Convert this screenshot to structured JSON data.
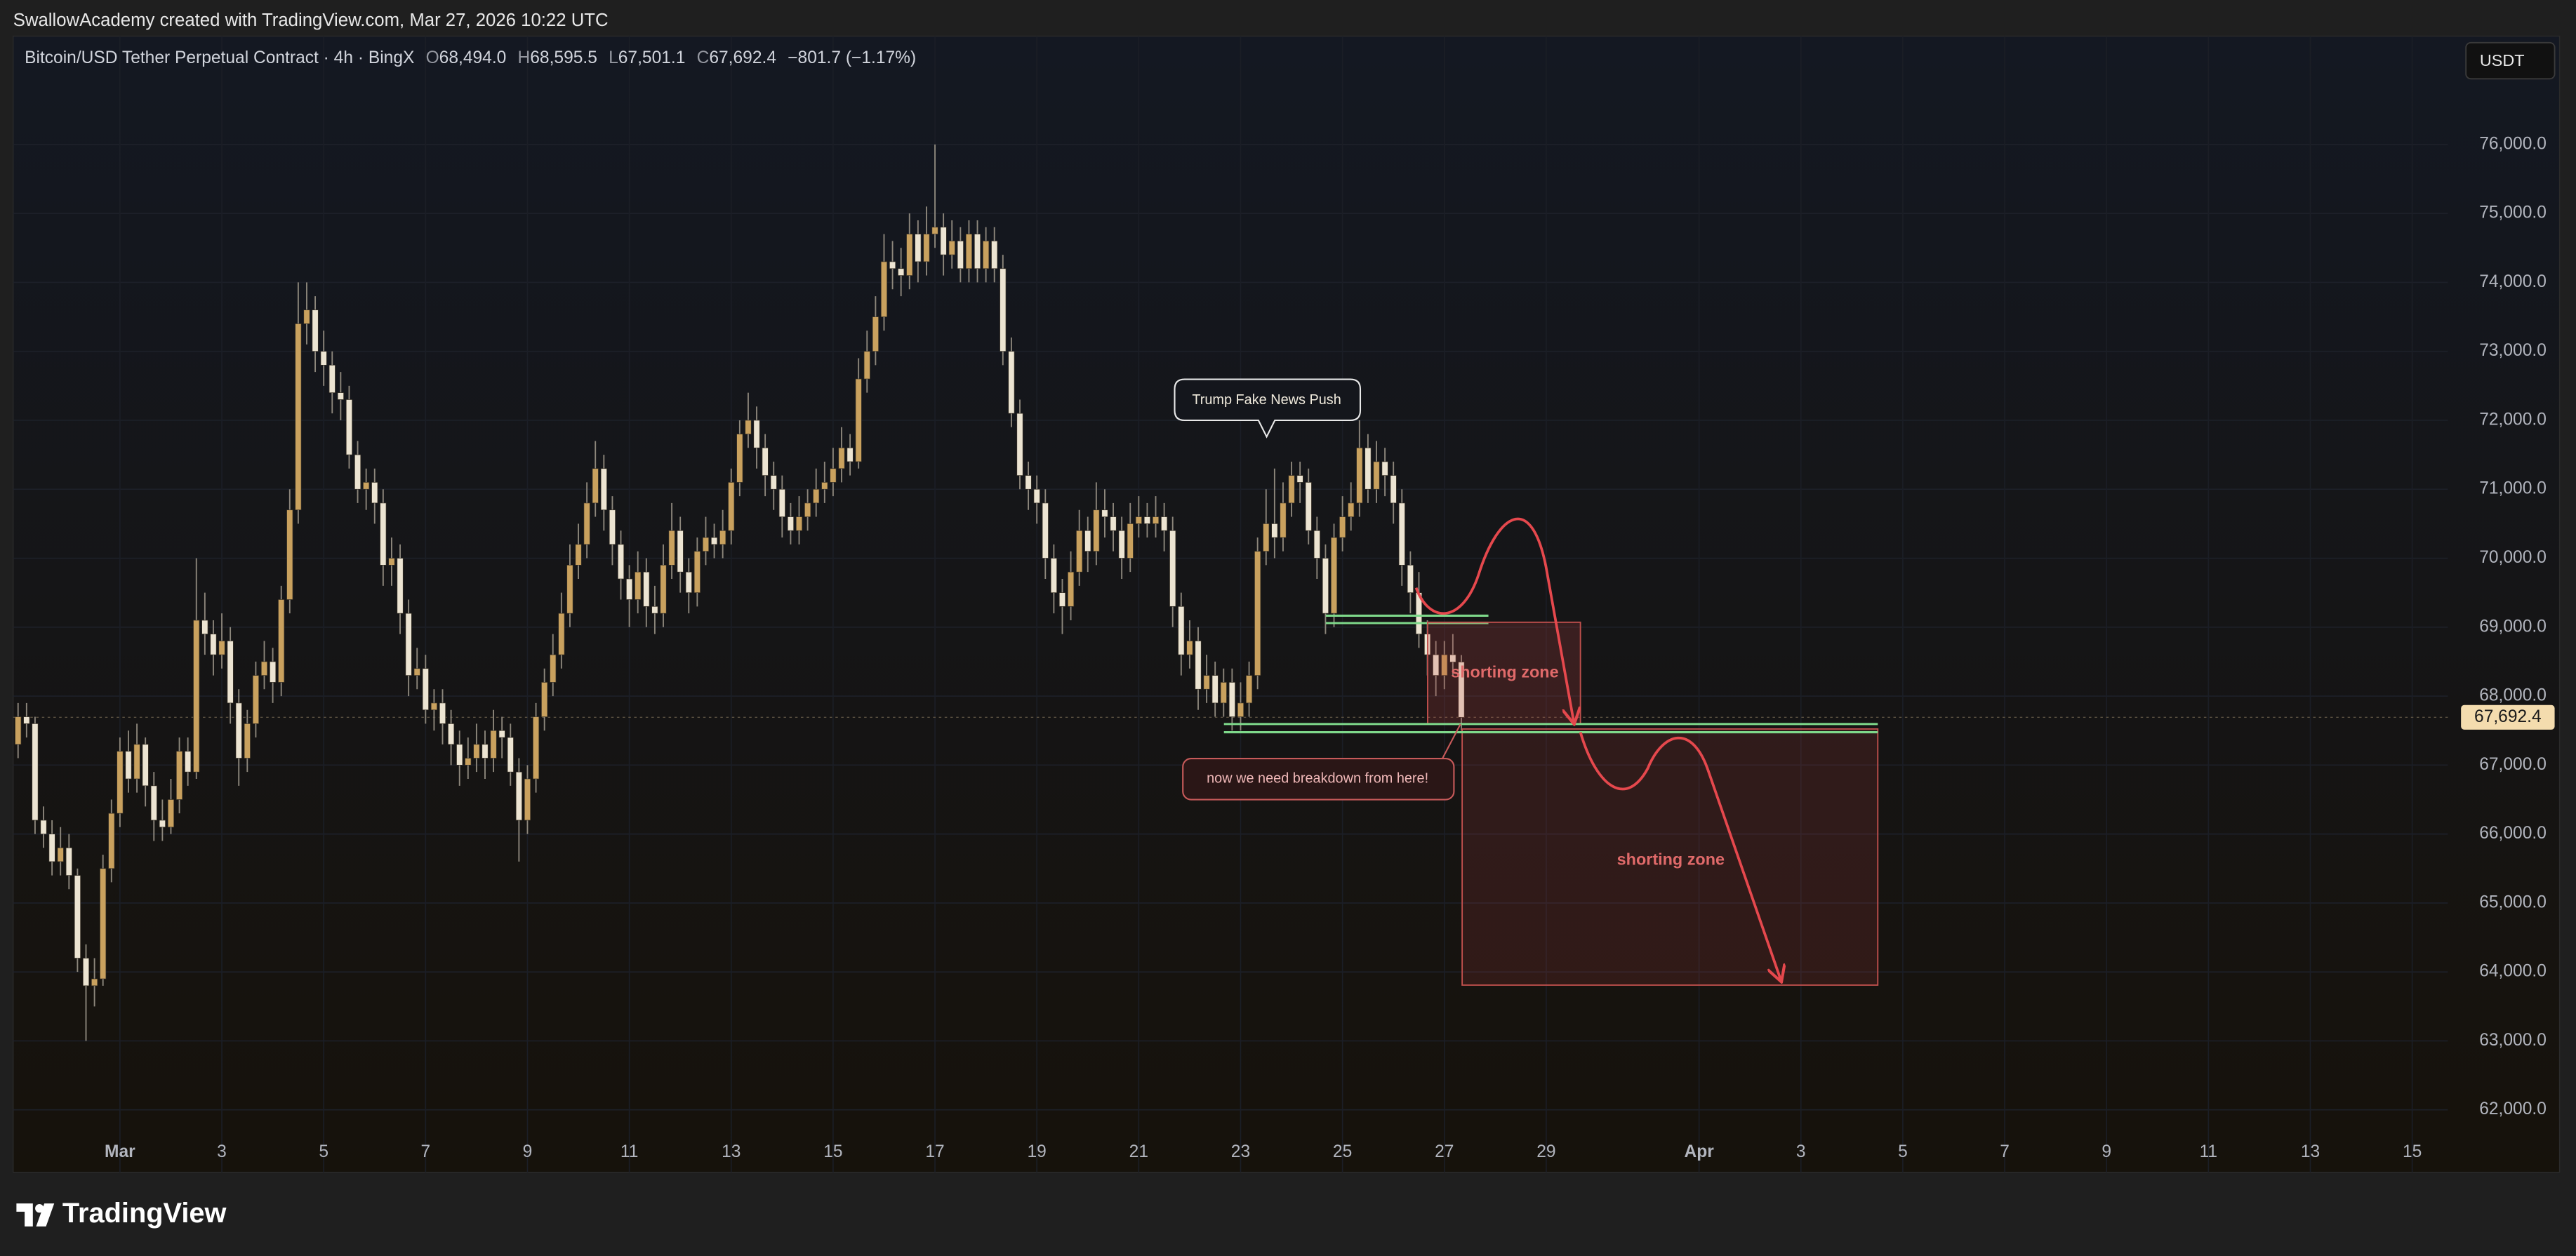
{
  "credit": "SwallowAcademy created with TradingView.com, Mar 27, 2026 10:22 UTC",
  "currency_button": "USDT",
  "brand": "TradingView",
  "chart_data": {
    "type": "candlestick",
    "title": "Bitcoin/USD Tether Perpetual Contract · 4h · BingX",
    "ohlc_labels": [
      {
        "key": "O",
        "label": "68,494.0"
      },
      {
        "key": "H",
        "label": "68,595.5"
      },
      {
        "key": "L",
        "label": "67,501.1"
      },
      {
        "key": "C",
        "label": "67,692.4"
      }
    ],
    "change_label": "−801.7 (−1.17%)",
    "last_price_label": "67,692.4",
    "up_color": "#c9a15e",
    "down_color": "#ece4d2",
    "grid": true,
    "xlim": [
      -0.58,
      286.2
    ],
    "ylim": [
      61095,
      77571
    ],
    "xticks": [
      {
        "value": 12,
        "label": "Mar"
      },
      {
        "value": 24,
        "label": "3"
      },
      {
        "value": 36,
        "label": "5"
      },
      {
        "value": 48,
        "label": "7"
      },
      {
        "value": 60,
        "label": "9"
      },
      {
        "value": 72,
        "label": "11"
      },
      {
        "value": 84,
        "label": "13"
      },
      {
        "value": 96,
        "label": "15"
      },
      {
        "value": 108,
        "label": "17"
      },
      {
        "value": 120,
        "label": "19"
      },
      {
        "value": 132,
        "label": "21"
      },
      {
        "value": 144,
        "label": "23"
      },
      {
        "value": 156,
        "label": "25"
      },
      {
        "value": 168,
        "label": "27"
      },
      {
        "value": 180,
        "label": "29"
      },
      {
        "value": 198,
        "label": "Apr"
      },
      {
        "value": 210,
        "label": "3"
      },
      {
        "value": 222,
        "label": "5"
      },
      {
        "value": 234,
        "label": "7"
      },
      {
        "value": 246,
        "label": "9"
      },
      {
        "value": 258,
        "label": "11"
      },
      {
        "value": 270,
        "label": "13"
      },
      {
        "value": 282,
        "label": "15"
      }
    ],
    "yticks": [
      {
        "value": 62000,
        "label": "62,000.0"
      },
      {
        "value": 63000,
        "label": "63,000.0"
      },
      {
        "value": 64000,
        "label": "64,000.0"
      },
      {
        "value": 65000,
        "label": "65,000.0"
      },
      {
        "value": 66000,
        "label": "66,000.0"
      },
      {
        "value": 67000,
        "label": "67,000.0"
      },
      {
        "value": 68000,
        "label": "68,000.0"
      },
      {
        "value": 69000,
        "label": "69,000.0"
      },
      {
        "value": 70000,
        "label": "70,000.0"
      },
      {
        "value": 71000,
        "label": "71,000.0"
      },
      {
        "value": 72000,
        "label": "72,000.0"
      },
      {
        "value": 73000,
        "label": "73,000.0"
      },
      {
        "value": 74000,
        "label": "74,000.0"
      },
      {
        "value": 75000,
        "label": "75,000.0"
      },
      {
        "value": 76000,
        "label": "76,000.0"
      }
    ],
    "open": [
      67300,
      67700,
      67600,
      66200,
      66000,
      65600,
      65800,
      65400,
      64200,
      63800,
      63900,
      65500,
      66300,
      67200,
      66800,
      67300,
      66700,
      66200,
      66100,
      66500,
      67200,
      66900,
      69100,
      68900,
      68600,
      68800,
      67900,
      67100,
      67600,
      68300,
      68500,
      68200,
      69400,
      70700,
      73400,
      73600,
      73000,
      72800,
      72400,
      72300,
      71500,
      71000,
      71100,
      70800,
      69900,
      70000,
      69200,
      68300,
      68400,
      67800,
      67900,
      67600,
      67300,
      67000,
      67100,
      67300,
      67100,
      67500,
      67400,
      66900,
      66200,
      66800,
      67700,
      68200,
      68600,
      69200,
      69900,
      70200,
      70800,
      71300,
      70700,
      70200,
      69700,
      69400,
      69800,
      69300,
      69200,
      69900,
      70400,
      69800,
      69500,
      70100,
      70300,
      70200,
      70400,
      71100,
      71800,
      72000,
      71600,
      71200,
      71000,
      70600,
      70400,
      70600,
      70800,
      71000,
      71100,
      71300,
      71600,
      71400,
      72600,
      73000,
      73500,
      74300,
      74200,
      74100,
      74700,
      74300,
      74700,
      74800,
      74400,
      74600,
      74200,
      74700,
      74200,
      74600,
      74200,
      73000,
      72100,
      71200,
      71000,
      70800,
      70000,
      69500,
      69300,
      69800,
      70400,
      70100,
      70700,
      70600,
      70400,
      70000,
      70500,
      70600,
      70500,
      70600,
      70400,
      69300,
      68600,
      68800,
      68100,
      68300,
      67900,
      68200,
      67700,
      67900,
      68300,
      70100,
      70500,
      70300,
      70800,
      71200,
      71100,
      70400,
      70000,
      69200,
      70300,
      70600,
      70800,
      71600,
      71000,
      71400,
      71200,
      70800,
      69900,
      69500,
      68900,
      68600,
      68300,
      68600,
      68494
    ],
    "high": [
      67900,
      67900,
      67700,
      66400,
      66200,
      66100,
      66000,
      65500,
      64400,
      64200,
      65700,
      66500,
      67400,
      67500,
      67600,
      67400,
      66900,
      66500,
      66800,
      67400,
      67400,
      70000,
      69500,
      69100,
      69200,
      69000,
      68100,
      67800,
      68500,
      68800,
      68700,
      69600,
      71000,
      74000,
      74000,
      73800,
      73300,
      73000,
      72700,
      72500,
      71700,
      71300,
      71300,
      71000,
      70300,
      70200,
      69400,
      68700,
      68600,
      68100,
      68100,
      67800,
      67500,
      67400,
      67600,
      67500,
      67800,
      67700,
      67600,
      67100,
      67000,
      67900,
      68400,
      68900,
      69500,
      70200,
      70500,
      71100,
      71700,
      71500,
      70900,
      70400,
      69900,
      70100,
      70000,
      69600,
      70200,
      70800,
      70600,
      70000,
      70300,
      70600,
      70500,
      70700,
      71300,
      72000,
      72400,
      72200,
      71800,
      71400,
      71200,
      70800,
      70900,
      71000,
      71300,
      71400,
      71600,
      71900,
      71800,
      72900,
      73300,
      73800,
      74700,
      74600,
      74500,
      75000,
      74900,
      75100,
      76000,
      75000,
      74900,
      74800,
      74900,
      74900,
      74800,
      74800,
      74400,
      73200,
      72300,
      71400,
      71200,
      71000,
      70200,
      69700,
      70100,
      70700,
      70600,
      71100,
      71000,
      70800,
      70600,
      70800,
      70900,
      70800,
      70900,
      70800,
      70600,
      69500,
      69100,
      69000,
      68600,
      68500,
      68400,
      68400,
      68200,
      68500,
      70300,
      71000,
      71300,
      71100,
      71400,
      71400,
      71300,
      70600,
      70200,
      70500,
      70900,
      71100,
      72000,
      71800,
      71700,
      71600,
      71400,
      71000,
      70100,
      69800,
      69100,
      68800,
      68800,
      68900,
      68595.5
    ],
    "low": [
      67100,
      67400,
      66000,
      65800,
      65400,
      65400,
      65200,
      64000,
      63000,
      63500,
      63800,
      65300,
      66100,
      66600,
      66600,
      66400,
      65900,
      65900,
      66000,
      66300,
      66700,
      66800,
      68600,
      68300,
      68400,
      67600,
      66700,
      66900,
      67400,
      68100,
      67900,
      68000,
      69200,
      70500,
      73100,
      72700,
      72500,
      72100,
      72000,
      71300,
      70800,
      70700,
      70500,
      69600,
      69600,
      68900,
      68000,
      68100,
      67600,
      67500,
      67300,
      67000,
      66700,
      66800,
      66900,
      66800,
      66900,
      67100,
      66700,
      65600,
      66000,
      66600,
      67500,
      68000,
      68400,
      69000,
      69700,
      70000,
      70600,
      70400,
      69900,
      69400,
      69000,
      69200,
      69000,
      68900,
      69000,
      69700,
      69500,
      69200,
      69300,
      69900,
      70000,
      70000,
      70200,
      70900,
      71600,
      71300,
      70900,
      70700,
      70300,
      70200,
      70200,
      70400,
      70600,
      70800,
      70900,
      71100,
      71200,
      71300,
      72400,
      72800,
      73300,
      73900,
      73800,
      73900,
      74000,
      74100,
      74500,
      74100,
      74200,
      74000,
      74000,
      74000,
      74000,
      74000,
      72800,
      71900,
      71000,
      70700,
      70500,
      69700,
      69200,
      68900,
      69100,
      69600,
      69800,
      69900,
      70300,
      70100,
      69700,
      69800,
      70300,
      70300,
      70300,
      70100,
      69000,
      68300,
      68400,
      67800,
      67900,
      67700,
      67700,
      67500,
      67500,
      67700,
      68100,
      69900,
      70000,
      70100,
      70600,
      70800,
      70200,
      69700,
      68900,
      69000,
      70100,
      70400,
      70600,
      70800,
      70800,
      70900,
      70500,
      69600,
      69200,
      68700,
      68300,
      68000,
      68100,
      68300,
      67501.1
    ],
    "close": [
      67700,
      67600,
      66200,
      66000,
      65600,
      65800,
      65400,
      64200,
      63800,
      63900,
      65500,
      66300,
      67200,
      66800,
      67300,
      66700,
      66200,
      66100,
      66500,
      67200,
      66900,
      69100,
      68900,
      68600,
      68800,
      67900,
      67100,
      67600,
      68300,
      68500,
      68200,
      69400,
      70700,
      73400,
      73600,
      73000,
      72800,
      72400,
      72300,
      71500,
      71000,
      71100,
      70800,
      69900,
      70000,
      69200,
      68300,
      68400,
      67800,
      67900,
      67600,
      67300,
      67000,
      67100,
      67300,
      67100,
      67500,
      67400,
      66900,
      66200,
      66800,
      67700,
      68200,
      68600,
      69200,
      69900,
      70200,
      70800,
      71300,
      70700,
      70200,
      69700,
      69400,
      69800,
      69300,
      69200,
      69900,
      70400,
      69800,
      69500,
      70100,
      70300,
      70200,
      70400,
      71100,
      71800,
      72000,
      71600,
      71200,
      71000,
      70600,
      70400,
      70600,
      70800,
      71000,
      71100,
      71300,
      71600,
      71400,
      72600,
      73000,
      73500,
      74300,
      74200,
      74100,
      74700,
      74300,
      74700,
      74800,
      74400,
      74600,
      74200,
      74700,
      74200,
      74600,
      74200,
      73000,
      72100,
      71200,
      71000,
      70800,
      70000,
      69500,
      69300,
      69800,
      70400,
      70100,
      70700,
      70600,
      70400,
      70000,
      70500,
      70600,
      70500,
      70600,
      70400,
      69300,
      68600,
      68800,
      68100,
      68300,
      67900,
      68200,
      67700,
      67900,
      68300,
      70100,
      70500,
      70300,
      70800,
      71200,
      71100,
      70400,
      70000,
      69200,
      70300,
      70600,
      70800,
      71600,
      71000,
      71400,
      71200,
      70800,
      69900,
      69500,
      68900,
      68600,
      68300,
      68600,
      68494,
      67692.4
    ],
    "annotations": {
      "callout": "Trump Fake News Push",
      "note": "now we need breakdown from here!",
      "zones": [
        "shorting zone",
        "shorting zone"
      ]
    }
  }
}
